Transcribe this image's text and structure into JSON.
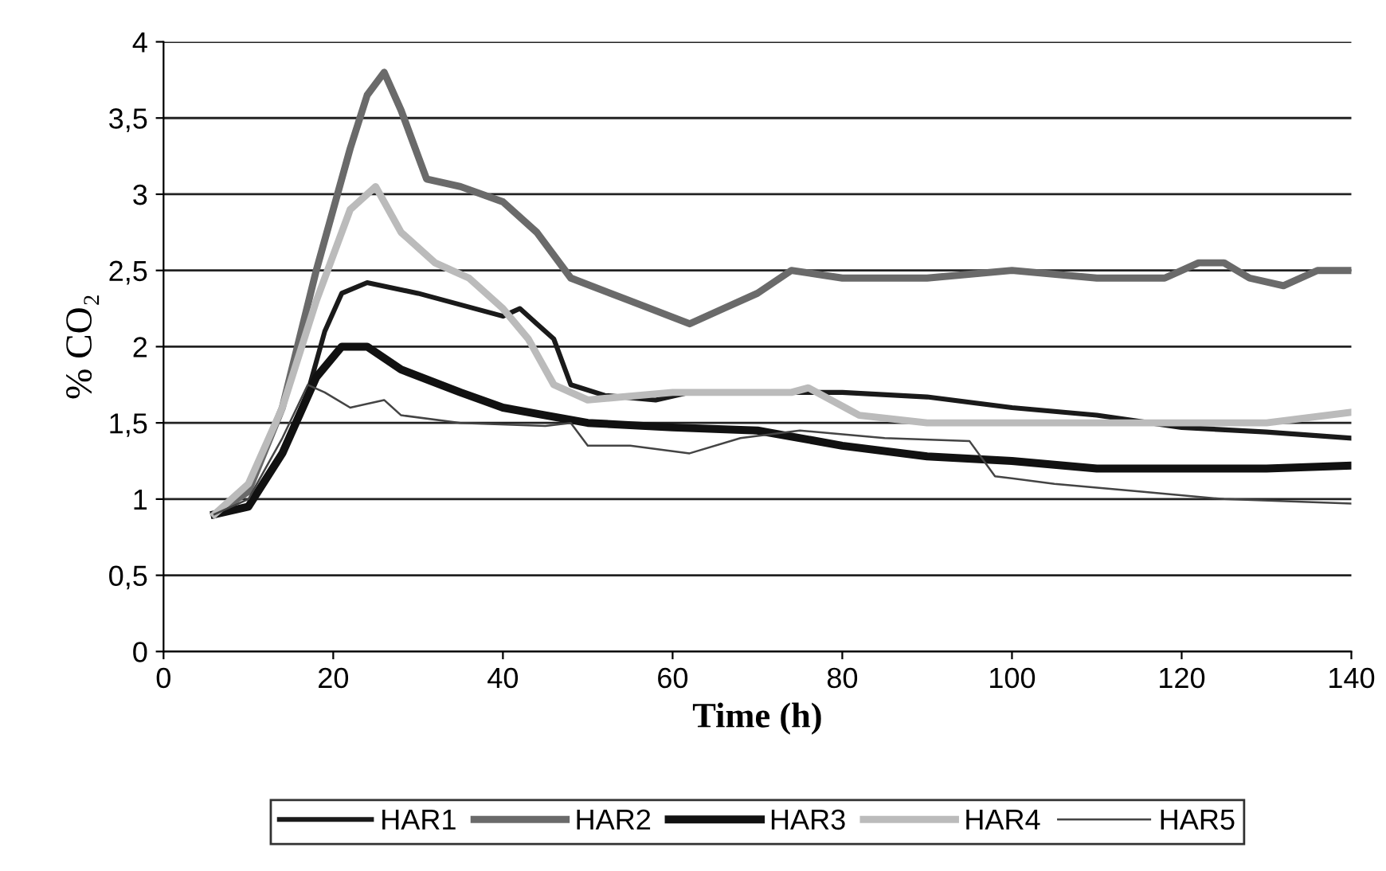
{
  "chart_data": {
    "type": "line",
    "xlabel": "Time (h)",
    "ylabel": "% CO₂",
    "xlim": [
      0,
      140
    ],
    "xticks": [
      0,
      20,
      40,
      60,
      80,
      100,
      120,
      140
    ],
    "ylim": [
      0,
      4
    ],
    "yticks": [
      0,
      {
        "value": 0.5,
        "label": "0,5"
      },
      1,
      {
        "value": 1.5,
        "label": "1,5"
      },
      2,
      {
        "value": 2.5,
        "label": "2,5"
      },
      3,
      {
        "value": 3.5,
        "label": "3,5"
      },
      4
    ],
    "grid": "y",
    "legend": "bottom",
    "marker": "none",
    "line_style": "solid",
    "series": [
      {
        "name": "HAR1",
        "color": "#1a1a1a",
        "x": [
          6,
          10,
          14,
          17,
          19,
          21,
          24,
          30,
          40,
          42,
          44,
          46,
          48,
          52,
          58,
          62,
          80,
          90,
          100,
          110,
          120,
          130,
          140
        ],
        "values": [
          0.9,
          0.95,
          1.3,
          1.7,
          2.1,
          2.35,
          2.42,
          2.35,
          2.2,
          2.25,
          2.15,
          2.05,
          1.75,
          1.68,
          1.65,
          1.7,
          1.7,
          1.67,
          1.6,
          1.55,
          1.47,
          1.44,
          1.4
        ]
      },
      {
        "name": "HAR2",
        "color": "#6a6a6a",
        "x": [
          6,
          10,
          14,
          18,
          22,
          24,
          26,
          28,
          31,
          35,
          40,
          44,
          48,
          55,
          62,
          66,
          70,
          74,
          80,
          90,
          100,
          110,
          118,
          122,
          125,
          128,
          132,
          136,
          140
        ],
        "values": [
          0.9,
          1.05,
          1.6,
          2.5,
          3.3,
          3.65,
          3.8,
          3.55,
          3.1,
          3.05,
          2.95,
          2.75,
          2.45,
          2.3,
          2.15,
          2.25,
          2.35,
          2.5,
          2.45,
          2.45,
          2.5,
          2.45,
          2.45,
          2.55,
          2.55,
          2.45,
          2.4,
          2.5,
          2.5
        ]
      },
      {
        "name": "HAR3",
        "color": "#111111",
        "x": [
          6,
          10,
          14,
          18,
          21,
          24,
          28,
          35,
          40,
          45,
          50,
          60,
          70,
          80,
          90,
          100,
          110,
          120,
          130,
          140
        ],
        "values": [
          0.9,
          0.95,
          1.3,
          1.8,
          2.0,
          2.0,
          1.85,
          1.7,
          1.6,
          1.55,
          1.5,
          1.47,
          1.45,
          1.35,
          1.28,
          1.25,
          1.2,
          1.2,
          1.2,
          1.22
        ]
      },
      {
        "name": "HAR4",
        "color": "#bbbbbb",
        "x": [
          6,
          10,
          14,
          18,
          22,
          25,
          28,
          32,
          36,
          40,
          43,
          46,
          50,
          60,
          74,
          76,
          82,
          90,
          100,
          120,
          130,
          140
        ],
        "values": [
          0.9,
          1.1,
          1.6,
          2.3,
          2.9,
          3.05,
          2.75,
          2.55,
          2.45,
          2.25,
          2.05,
          1.75,
          1.65,
          1.7,
          1.7,
          1.73,
          1.55,
          1.5,
          1.5,
          1.5,
          1.5,
          1.57
        ]
      },
      {
        "name": "HAR5",
        "color": "#444444",
        "x": [
          6,
          10,
          14,
          17,
          19,
          22,
          26,
          28,
          35,
          45,
          48,
          50,
          55,
          62,
          68,
          75,
          85,
          95,
          98,
          105,
          115,
          125,
          140
        ],
        "values": [
          0.9,
          1.0,
          1.4,
          1.75,
          1.7,
          1.6,
          1.65,
          1.55,
          1.5,
          1.48,
          1.5,
          1.35,
          1.35,
          1.3,
          1.4,
          1.45,
          1.4,
          1.38,
          1.15,
          1.1,
          1.05,
          1.0,
          0.97
        ]
      }
    ]
  }
}
